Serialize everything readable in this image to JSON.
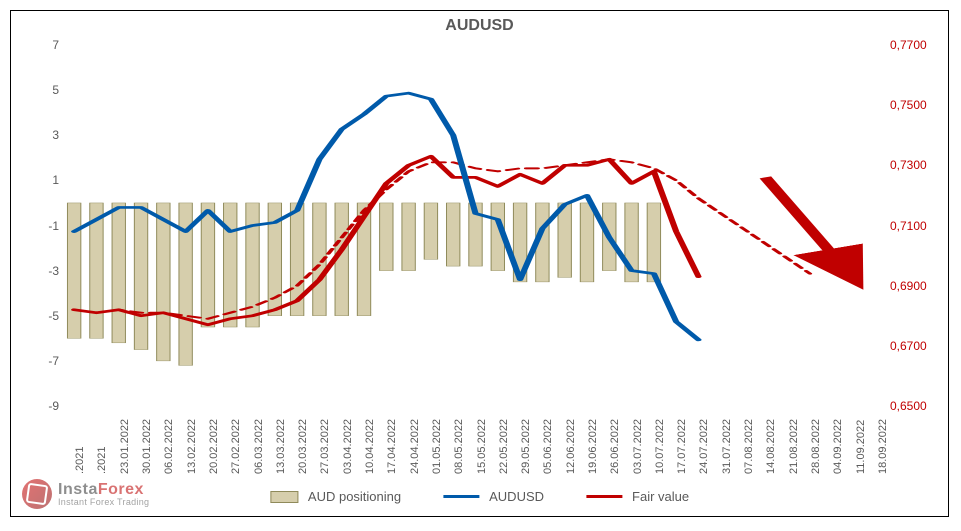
{
  "chart": {
    "type": "combo-bar-line",
    "title": "AUDUSD",
    "title_fontsize": 16,
    "title_color": "#595959",
    "background_color": "#ffffff",
    "border_color": "#000000",
    "plot_background": "#ffffff",
    "left_axis": {
      "min": -9,
      "max": 7,
      "tick_step": 2,
      "ticks": [
        -9,
        -7,
        -5,
        -3,
        -1,
        1,
        3,
        5,
        7
      ],
      "tick_color": "#595959",
      "tick_fontsize": 12
    },
    "right_axis": {
      "min": 0.65,
      "max": 0.77,
      "tick_step": 0.02,
      "ticks": [
        "0,6500",
        "0,6700",
        "0,6900",
        "0,7100",
        "0,7300",
        "0,7500",
        "0,7700"
      ],
      "tick_color": "#c00000",
      "tick_fontsize": 12
    },
    "x_axis": {
      "labels": [
        ".2021",
        ".2021",
        "23.01.2022",
        "30.01.2022",
        "06.02.2022",
        "13.02.2022",
        "20.02.2022",
        "27.02.2022",
        "06.03.2022",
        "13.03.2022",
        "20.03.2022",
        "27.03.2022",
        "03.04.2022",
        "10.04.2022",
        "17.04.2022",
        "24.04.2022",
        "01.05.2022",
        "08.05.2022",
        "15.05.2022",
        "22.05.2022",
        "29.05.2022",
        "05.06.2022",
        "12.06.2022",
        "19.06.2022",
        "26.06.2022",
        "03.07.2022",
        "10.07.2022",
        "17.07.2022",
        "24.07.2022",
        "31.07.2022",
        "07.08.2022",
        "14.08.2022",
        "21.08.2022",
        "28.08.2022",
        "04.09.2022",
        "11.09.2022",
        "18.09.2022"
      ],
      "tick_fontsize": 11,
      "tick_color": "#595959",
      "rotation": -90
    },
    "series": {
      "bars": {
        "label": "AUD positioning",
        "color_fill": "#d6ceac",
        "color_border": "#8f8a5a",
        "bar_width": 0.6,
        "axis": "left",
        "values": [
          -6,
          -6,
          -6.2,
          -6.5,
          -7,
          -7.2,
          -5.5,
          -5.5,
          -5.5,
          -5,
          -5,
          -5,
          -5,
          -5,
          -3,
          -3,
          -2.5,
          -2.8,
          -2.8,
          -3,
          -3.5,
          -3.5,
          -3.3,
          -3.5,
          -3,
          -3.5,
          -3.5
        ]
      },
      "audusd_line": {
        "label": "AUDUSD",
        "color": "#005aaa",
        "line_width": 2.5,
        "axis": "right",
        "values": [
          0.708,
          0.712,
          0.716,
          0.716,
          0.712,
          0.708,
          0.715,
          0.708,
          0.71,
          0.711,
          0.715,
          0.732,
          0.742,
          0.747,
          0.753,
          0.754,
          0.752,
          0.74,
          0.714,
          0.712,
          0.692,
          0.709,
          0.717,
          0.72,
          0.706,
          0.695,
          0.694,
          0.678,
          0.672
        ]
      },
      "fair_value_solid": {
        "label": "Fair value",
        "color": "#c00000",
        "line_width": 2.5,
        "axis": "right",
        "values": [
          0.682,
          0.681,
          0.682,
          0.68,
          0.681,
          0.679,
          0.677,
          0.679,
          0.68,
          0.682,
          0.685,
          0.692,
          0.702,
          0.713,
          0.724,
          0.73,
          0.733,
          0.726,
          0.726,
          0.723,
          0.727,
          0.724,
          0.73,
          0.73,
          0.732,
          0.724,
          0.728,
          0.708,
          0.693
        ]
      },
      "fair_value_dashed": {
        "color": "#c00000",
        "line_width": 1.8,
        "dash": "6,4",
        "axis": "right",
        "values": [
          0.682,
          0.681,
          0.682,
          0.681,
          0.681,
          0.68,
          0.679,
          0.681,
          0.683,
          0.686,
          0.69,
          0.697,
          0.706,
          0.715,
          0.722,
          0.728,
          0.731,
          0.731,
          0.729,
          0.728,
          0.729,
          0.729,
          0.73,
          0.731,
          0.732,
          0.731,
          0.729,
          0.725,
          0.719,
          0.714,
          0.709,
          0.704,
          0.699,
          0.694
        ]
      }
    },
    "arrow": {
      "start": {
        "index": 31,
        "value_right": 0.726
      },
      "end": {
        "index": 35,
        "value_right": 0.692
      },
      "color": "#c00000",
      "width": 5
    },
    "legend": {
      "position": "bottom",
      "fontsize": 13,
      "items": [
        {
          "label": "AUD positioning",
          "type": "bar",
          "fill": "#d6ceac",
          "border": "#8f8a5a"
        },
        {
          "label": "AUDUSD",
          "type": "line",
          "color": "#005aaa"
        },
        {
          "label": "Fair value",
          "type": "line",
          "color": "#c00000"
        }
      ]
    }
  },
  "watermark": {
    "brand_part1": "Insta",
    "brand_part2": "Forex",
    "tagline": "Instant Forex Trading"
  }
}
